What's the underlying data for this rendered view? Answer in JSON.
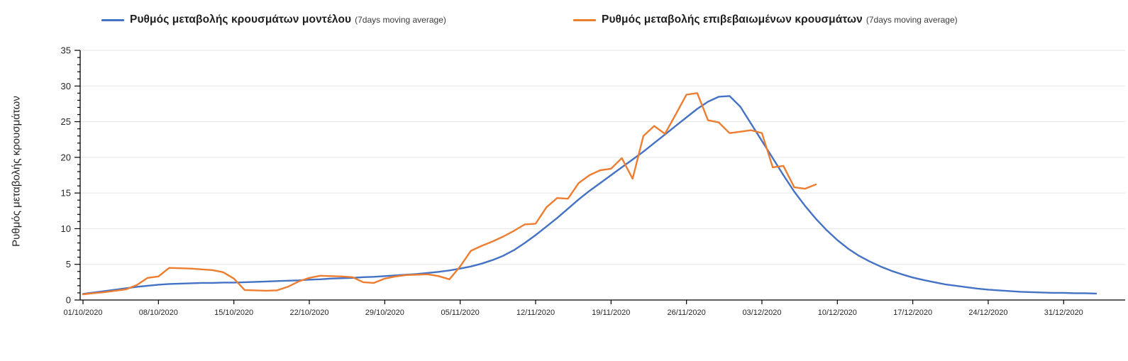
{
  "legend": {
    "model": {
      "label": "Ρυθμός μεταβολής κρουσμάτων μοντέλου",
      "suffix": "(7days moving average)",
      "color": "#4472c4"
    },
    "confirmed": {
      "label": "Ρυθμός μεταβολής επιβεβαιωμένων κρουσμάτων",
      "suffix": "(7days moving average)",
      "color": "#ed7d31"
    }
  },
  "chart_data": {
    "type": "line",
    "title": "",
    "xlabel": "",
    "ylabel": "Ρυθμός μεταβολής κρουσμάτων",
    "ylim": [
      0,
      35
    ],
    "y_ticks": [
      0,
      5,
      10,
      15,
      20,
      25,
      30,
      35
    ],
    "y_minor_tick_step": 1,
    "grid": "horizontal",
    "grid_color": "#e6e6e6",
    "axis_color": "#000000",
    "legend_position": "top",
    "x_tick_labels": [
      "01/10/2020",
      "08/10/2020",
      "15/10/2020",
      "22/10/2020",
      "29/10/2020",
      "05/11/2020",
      "12/11/2020",
      "19/11/2020",
      "26/11/2020",
      "03/12/2020",
      "10/12/2020",
      "17/12/2020",
      "24/12/2020",
      "31/12/2020"
    ],
    "x_tick_interval_days": 7,
    "x_start_date": "01/10/2020",
    "series": [
      {
        "name": "Ρυθμός μεταβολής κρουσμάτων μοντέλου (7days moving average)",
        "color": "#4472c4",
        "start_day": 0,
        "values": [
          0.85,
          1.05,
          1.25,
          1.45,
          1.65,
          1.85,
          2.0,
          2.15,
          2.25,
          2.3,
          2.35,
          2.4,
          2.4,
          2.45,
          2.45,
          2.5,
          2.55,
          2.6,
          2.65,
          2.7,
          2.75,
          2.85,
          2.9,
          3.0,
          3.05,
          3.1,
          3.2,
          3.25,
          3.35,
          3.45,
          3.55,
          3.65,
          3.8,
          3.95,
          4.15,
          4.4,
          4.7,
          5.1,
          5.6,
          6.2,
          7.0,
          8.0,
          9.1,
          10.3,
          11.5,
          12.8,
          14.1,
          15.3,
          16.4,
          17.5,
          18.6,
          19.7,
          20.8,
          22.0,
          23.2,
          24.4,
          25.6,
          26.8,
          27.8,
          28.5,
          28.6,
          27.1,
          24.7,
          22.3,
          19.9,
          17.5,
          15.2,
          13.2,
          11.4,
          9.8,
          8.4,
          7.2,
          6.2,
          5.4,
          4.7,
          4.1,
          3.6,
          3.15,
          2.8,
          2.5,
          2.2,
          2.0,
          1.8,
          1.6,
          1.45,
          1.35,
          1.25,
          1.15,
          1.1,
          1.05,
          1.0,
          1.0,
          0.95,
          0.95,
          0.9
        ]
      },
      {
        "name": "Ρυθμός μεταβολής επιβεβαιωμένων κρουσμάτων (7days moving average)",
        "color": "#ed7d31",
        "start_day": 0,
        "values": [
          0.8,
          0.95,
          1.1,
          1.3,
          1.5,
          2.1,
          3.1,
          3.3,
          4.5,
          4.45,
          4.4,
          4.3,
          4.2,
          3.9,
          3.0,
          1.4,
          1.35,
          1.3,
          1.35,
          1.85,
          2.6,
          3.1,
          3.4,
          3.35,
          3.3,
          3.2,
          2.5,
          2.4,
          3.0,
          3.3,
          3.5,
          3.55,
          3.6,
          3.35,
          2.9,
          4.7,
          6.9,
          7.6,
          8.2,
          8.9,
          9.7,
          10.6,
          10.7,
          13.0,
          14.3,
          14.2,
          16.4,
          17.5,
          18.2,
          18.4,
          19.9,
          17.0,
          23.0,
          24.4,
          23.3,
          26.0,
          28.8,
          29.0,
          25.2,
          24.9,
          23.4,
          23.6,
          23.8,
          23.4,
          18.6,
          18.8,
          15.8,
          15.6,
          16.2
        ]
      }
    ]
  }
}
